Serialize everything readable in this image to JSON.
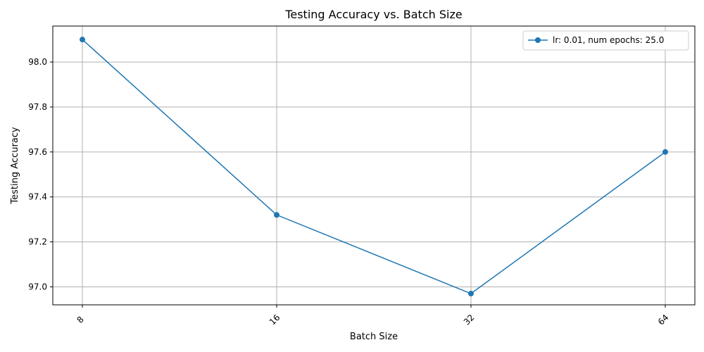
{
  "chart_data": {
    "type": "line",
    "title": "Testing Accuracy vs. Batch Size",
    "xlabel": "Batch Size",
    "ylabel": "Testing Accuracy",
    "categories": [
      "8",
      "16",
      "32",
      "64"
    ],
    "series": [
      {
        "name": "lr: 0.01, num epochs: 25.0",
        "values": [
          98.1,
          97.32,
          96.97,
          97.6
        ],
        "color": "#1f77b4",
        "marker": "circle"
      }
    ],
    "ylim": [
      96.92,
      98.16
    ],
    "yticks": [
      "97.0",
      "97.2",
      "97.4",
      "97.6",
      "97.8",
      "98.0"
    ],
    "grid": true,
    "legend_position": "top-right",
    "xtick_rotation": "45 degrees"
  }
}
